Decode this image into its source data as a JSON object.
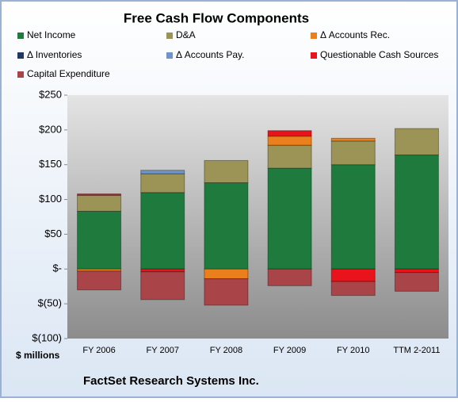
{
  "chart_data": {
    "type": "stacked_bar",
    "title": "Free Cash Flow Components",
    "y_axis_label": "$ millions",
    "source": "FactSet Research Systems Inc.",
    "categories": [
      "FY 2006",
      "FY 2007",
      "FY 2008",
      "FY 2009",
      "FY 2010",
      "TTM 2-2011"
    ],
    "series": [
      {
        "name": "Net Income",
        "color": "#1e7b3d",
        "values": [
          83,
          110,
          124,
          145,
          150,
          164
        ]
      },
      {
        "name": "D&A",
        "color": "#9c9457",
        "values": [
          23,
          27,
          32,
          33,
          34,
          38
        ]
      },
      {
        "name": "Δ Accounts Rec.",
        "color": "#ea7f1c",
        "values": [
          -3,
          0,
          -14,
          13,
          4,
          0
        ]
      },
      {
        "name": "Δ Inventories",
        "color": "#1f3864",
        "values": [
          0,
          0,
          0,
          0,
          0,
          0
        ]
      },
      {
        "name": "Δ Accounts Pay.",
        "color": "#6f94c8",
        "values": [
          0,
          5,
          0,
          0,
          0,
          0
        ]
      },
      {
        "name": "Questionable Cash Sources",
        "color": "#e8131b",
        "values": [
          2,
          -4,
          0,
          8,
          -18,
          -5
        ]
      },
      {
        "name": "Capital Expenditure",
        "color": "#a94448",
        "values": [
          -27,
          -40,
          -38,
          -24,
          -20,
          -27
        ]
      }
    ],
    "ylim": [
      -100,
      250
    ],
    "yticks": [
      {
        "value": -100,
        "label": "$(100)"
      },
      {
        "value": -50,
        "label": "$(50)"
      },
      {
        "value": 0,
        "label": "$-"
      },
      {
        "value": 50,
        "label": "$50"
      },
      {
        "value": 100,
        "label": "$100"
      },
      {
        "value": 150,
        "label": "$150"
      },
      {
        "value": 200,
        "label": "$200"
      },
      {
        "value": 250,
        "label": "$250"
      }
    ]
  }
}
